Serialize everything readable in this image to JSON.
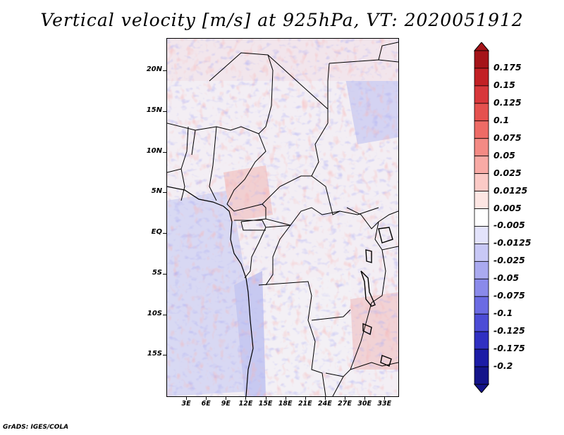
{
  "title": "Vertical velocity [m/s] at 925hPa, VT: 2020051912",
  "credit": "GrADS: IGES/COLA",
  "map": {
    "variable": "Vertical velocity",
    "units": "m/s",
    "level": "925hPa",
    "valid_time": "2020051912",
    "lon_range": [
      0,
      35
    ],
    "lat_range": [
      -20,
      24
    ],
    "lat_ticks": [
      {
        "value": 20,
        "label": "20N"
      },
      {
        "value": 15,
        "label": "15N"
      },
      {
        "value": 10,
        "label": "10N"
      },
      {
        "value": 5,
        "label": "5N"
      },
      {
        "value": 0,
        "label": "EQ"
      },
      {
        "value": -5,
        "label": "5S"
      },
      {
        "value": -10,
        "label": "10S"
      },
      {
        "value": -15,
        "label": "15S"
      }
    ],
    "lon_ticks": [
      {
        "value": 3,
        "label": "3E"
      },
      {
        "value": 6,
        "label": "6E"
      },
      {
        "value": 9,
        "label": "9E"
      },
      {
        "value": 12,
        "label": "12E"
      },
      {
        "value": 15,
        "label": "15E"
      },
      {
        "value": 18,
        "label": "18E"
      },
      {
        "value": 21,
        "label": "21E"
      },
      {
        "value": 24,
        "label": "24E"
      },
      {
        "value": 27,
        "label": "27E"
      },
      {
        "value": 30,
        "label": "30E"
      },
      {
        "value": 33,
        "label": "33E"
      }
    ]
  },
  "colorbar": {
    "labels": [
      "0.175",
      "0.15",
      "0.125",
      "0.1",
      "0.075",
      "0.05",
      "0.025",
      "0.0125",
      "0.005",
      "-0.005",
      "-0.0125",
      "-0.025",
      "-0.05",
      "-0.075",
      "-0.1",
      "-0.125",
      "-0.175",
      "-0.2"
    ],
    "colors": [
      "#a51419",
      "#c22025",
      "#d8373b",
      "#e5514f",
      "#ee6b66",
      "#f48a84",
      "#f8aaa5",
      "#fbcac6",
      "#fde6e3",
      "#ffffff",
      "#e3e3fb",
      "#c8c8f6",
      "#aaaaf0",
      "#8a8aea",
      "#6b6be3",
      "#4c4cd6",
      "#3030c2",
      "#1c1ca6",
      "#14148a"
    ],
    "top_color": "#a51419",
    "bottom_color": "#14148a"
  }
}
